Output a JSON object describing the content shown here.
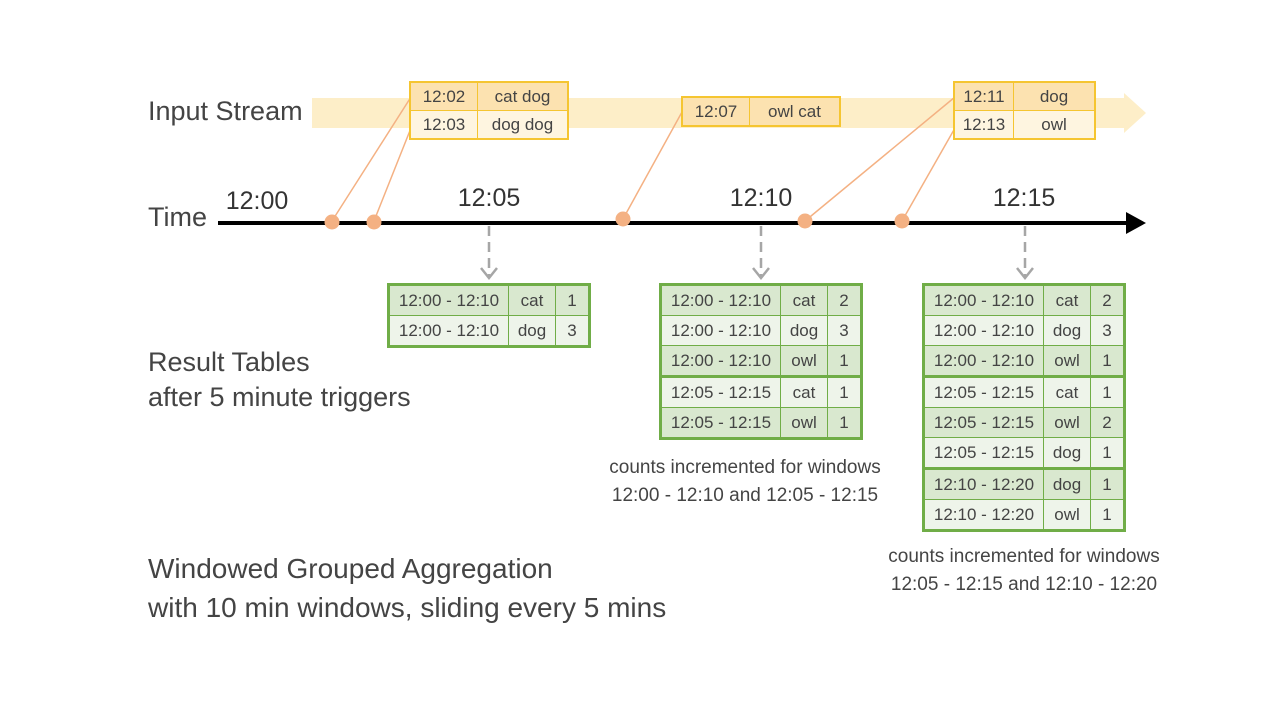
{
  "labels": {
    "input_stream": "Input Stream",
    "time": "Time",
    "result_tables_line1": "Result Tables",
    "result_tables_line2": "after 5 minute triggers",
    "footer_line1": "Windowed Grouped Aggregation",
    "footer_line2": "with 10 min windows, sliding every 5 mins"
  },
  "timeline_ticks": [
    "12:00",
    "12:05",
    "12:10",
    "12:15"
  ],
  "input_events": [
    {
      "time": "12:02",
      "words": "cat dog"
    },
    {
      "time": "12:03",
      "words": "dog dog"
    },
    {
      "time": "12:07",
      "words": "owl cat"
    },
    {
      "time": "12:11",
      "words": "dog"
    },
    {
      "time": "12:13",
      "words": "owl"
    }
  ],
  "result_tables": [
    {
      "rows": [
        {
          "window": "12:00 - 12:10",
          "word": "cat",
          "count": "1"
        },
        {
          "window": "12:00 - 12:10",
          "word": "dog",
          "count": "3"
        }
      ]
    },
    {
      "rows": [
        {
          "window": "12:00 - 12:10",
          "word": "cat",
          "count": "2"
        },
        {
          "window": "12:00 - 12:10",
          "word": "dog",
          "count": "3"
        },
        {
          "window": "12:00 - 12:10",
          "word": "owl",
          "count": "1"
        },
        {
          "window": "12:05 - 12:15",
          "word": "cat",
          "count": "1"
        },
        {
          "window": "12:05 - 12:15",
          "word": "owl",
          "count": "1"
        }
      ],
      "note_line1": "counts incremented for windows",
      "note_line2": "12:00 - 12:10 and 12:05 - 12:15"
    },
    {
      "rows": [
        {
          "window": "12:00 - 12:10",
          "word": "cat",
          "count": "2"
        },
        {
          "window": "12:00 - 12:10",
          "word": "dog",
          "count": "3"
        },
        {
          "window": "12:00 - 12:10",
          "word": "owl",
          "count": "1"
        },
        {
          "window": "12:05 - 12:15",
          "word": "cat",
          "count": "1"
        },
        {
          "window": "12:05 - 12:15",
          "word": "owl",
          "count": "2"
        },
        {
          "window": "12:05 - 12:15",
          "word": "dog",
          "count": "1"
        },
        {
          "window": "12:10 - 12:20",
          "word": "dog",
          "count": "1"
        },
        {
          "window": "12:10 - 12:20",
          "word": "owl",
          "count": "1"
        }
      ],
      "note_line1": "counts incremented for windows",
      "note_line2": "12:05 - 12:15 and 12:10 - 12:20"
    }
  ],
  "colors": {
    "stream_band": "#fdeec8",
    "event_border": "#f5c531",
    "event_dot": "#f4b183",
    "event_leader": "#f4b183",
    "table_border": "#70ad47",
    "table_shade": "#d9e8cf",
    "table_plain": "#eef4ea",
    "timeline": "#000000",
    "trigger_arrow": "#a6a6a6"
  }
}
